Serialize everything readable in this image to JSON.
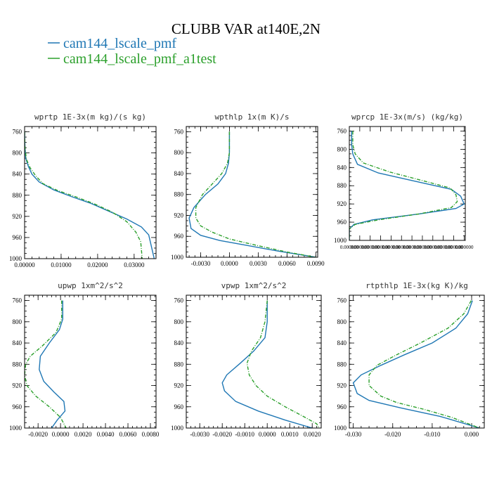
{
  "figure": {
    "title": "CLUBB VAR at140E,2N",
    "legend": [
      {
        "name": "cam144_lscale_pmf",
        "color": "#1f77b4"
      },
      {
        "name": "cam144_lscale_pmf_a1test",
        "color": "#2ca02c"
      }
    ]
  },
  "chart_data": [
    {
      "type": "line",
      "title": "wprtp  1E-3x(m kg)/(s kg)",
      "xlim": [
        0,
        0.036
      ],
      "ylim": [
        1000,
        750
      ],
      "xticks": [
        "0.00000",
        "0.01000",
        "0.02000",
        "0.03000"
      ],
      "xtick_values": [
        0,
        0.01,
        0.02,
        0.03
      ],
      "yticks": [
        "760",
        "800",
        "840",
        "880",
        "920",
        "960",
        "1000"
      ],
      "ytick_values": [
        760,
        800,
        840,
        880,
        920,
        960,
        1000
      ],
      "series": [
        {
          "name": "cam144_lscale_pmf",
          "color": "#1f77b4",
          "dashed": false,
          "x": [
            0,
            0.0001,
            0.0003,
            0.001,
            0.002,
            0.004,
            0.008,
            0.013,
            0.018,
            0.023,
            0.028,
            0.032,
            0.034,
            0.0355
          ],
          "y": [
            760,
            790,
            810,
            825,
            840,
            855,
            870,
            883,
            895,
            910,
            925,
            940,
            955,
            1000
          ]
        },
        {
          "name": "cam144_lscale_pmf_a1test",
          "color": "#2ca02c",
          "dashed": true,
          "x": [
            0,
            0.0001,
            0.0005,
            0.0015,
            0.003,
            0.005,
            0.009,
            0.014,
            0.019,
            0.024,
            0.028,
            0.0305,
            0.0318,
            0.0322
          ],
          "y": [
            760,
            790,
            812,
            828,
            843,
            858,
            871,
            883,
            896,
            912,
            930,
            950,
            968,
            1000
          ]
        }
      ]
    },
    {
      "type": "line",
      "title": "wpthlp  1x(m K)/s",
      "xlim": [
        -0.0045,
        0.0092
      ],
      "ylim": [
        1000,
        750
      ],
      "xticks": [
        "-0.0030",
        "0.0000",
        "0.0030",
        "0.0060",
        "0.0090"
      ],
      "xtick_values": [
        -0.003,
        0,
        0.003,
        0.006,
        0.009
      ],
      "yticks": [
        "760",
        "800",
        "840",
        "880",
        "920",
        "960",
        "1000"
      ],
      "ytick_values": [
        760,
        800,
        840,
        880,
        920,
        960,
        1000
      ],
      "series": [
        {
          "name": "cam144_lscale_pmf",
          "color": "#1f77b4",
          "dashed": false,
          "x": [
            0,
            0,
            -0.0001,
            -0.0004,
            -0.0012,
            -0.0025,
            -0.0037,
            -0.0042,
            -0.004,
            -0.003,
            -0.001,
            0.002,
            0.005,
            0.009
          ],
          "y": [
            760,
            800,
            820,
            840,
            860,
            880,
            905,
            925,
            945,
            958,
            968,
            978,
            988,
            1000
          ]
        },
        {
          "name": "cam144_lscale_pmf_a1test",
          "color": "#2ca02c",
          "dashed": true,
          "x": [
            0,
            0,
            -0.0002,
            -0.0008,
            -0.0018,
            -0.0028,
            -0.0035,
            -0.0035,
            -0.003,
            -0.0018,
            0.0,
            0.003,
            0.006,
            0.009
          ],
          "y": [
            760,
            800,
            820,
            840,
            860,
            880,
            905,
            925,
            940,
            952,
            965,
            978,
            990,
            1000
          ]
        }
      ]
    },
    {
      "type": "line",
      "title": "wprcp  1E-3x(m/s) (kg/kg)",
      "xlim": [
        0,
        1
      ],
      "ylim": [
        1000,
        750
      ],
      "xticks": [
        "0.000000",
        "0.000000",
        "0.000000",
        "0.000000",
        "0.000000",
        "0.000000",
        "0.000000",
        "0.000000",
        "0.000000",
        "0.000000",
        "0.000000",
        "0.000000"
      ],
      "xtick_values": [
        0,
        0.09,
        0.18,
        0.27,
        0.36,
        0.45,
        0.54,
        0.63,
        0.72,
        0.81,
        0.9,
        0.99
      ],
      "yticks": [
        "760",
        "800",
        "840",
        "880",
        "920",
        "960",
        "1000"
      ],
      "ytick_values": [
        760,
        800,
        840,
        880,
        920,
        960,
        1000
      ],
      "series": [
        {
          "name": "cam144_lscale_pmf",
          "color": "#1f77b4",
          "dashed": false,
          "x": [
            0.02,
            0.02,
            0.03,
            0.07,
            0.25,
            0.6,
            0.88,
            0.96,
            0.99,
            0.92,
            0.6,
            0.2,
            0.04,
            0.0,
            0.0
          ],
          "y": [
            760,
            790,
            810,
            833,
            852,
            872,
            888,
            903,
            920,
            930,
            942,
            955,
            965,
            975,
            1000
          ]
        },
        {
          "name": "cam144_lscale_pmf_a1test",
          "color": "#2ca02c",
          "dashed": true,
          "x": [
            0.03,
            0.03,
            0.05,
            0.12,
            0.35,
            0.65,
            0.87,
            0.92,
            0.93,
            0.88,
            0.6,
            0.25,
            0.05,
            0.0,
            0.0
          ],
          "y": [
            760,
            790,
            810,
            830,
            850,
            870,
            885,
            900,
            915,
            928,
            942,
            955,
            965,
            975,
            1000
          ]
        }
      ]
    },
    {
      "type": "line",
      "title": "upwp  1xm^2/s^2",
      "xlim": [
        -0.0032,
        0.0085
      ],
      "ylim": [
        1000,
        750
      ],
      "xticks": [
        "-0.0020",
        "0.0000",
        "0.0020",
        "0.0040",
        "0.0060",
        "0.0080"
      ],
      "xtick_values": [
        -0.002,
        0,
        0.002,
        0.004,
        0.006,
        0.008
      ],
      "yticks": [
        "760",
        "800",
        "840",
        "880",
        "920",
        "960",
        "1000"
      ],
      "ytick_values": [
        760,
        800,
        840,
        880,
        920,
        960,
        1000
      ],
      "series": [
        {
          "name": "cam144_lscale_pmf",
          "color": "#1f77b4",
          "dashed": false,
          "x": [
            0.0002,
            0.0002,
            -0.0001,
            -0.001,
            -0.0018,
            -0.0019,
            -0.0015,
            -0.0006,
            0.0003,
            0.0004,
            -0.0003,
            -0.0008
          ],
          "y": [
            760,
            795,
            815,
            840,
            865,
            890,
            912,
            932,
            950,
            968,
            985,
            1000
          ]
        },
        {
          "name": "cam144_lscale_pmf_a1test",
          "color": "#2ca02c",
          "dashed": true,
          "x": [
            0.0001,
            0.0001,
            -0.0004,
            -0.0016,
            -0.0027,
            -0.0031,
            -0.0032,
            -0.003,
            -0.0022,
            -0.001,
            0.0,
            0.0005
          ],
          "y": [
            760,
            795,
            820,
            845,
            865,
            880,
            900,
            920,
            940,
            960,
            980,
            1000
          ]
        }
      ]
    },
    {
      "type": "line",
      "title": "vpwp  1xm^2/s^2",
      "xlim": [
        -0.0036,
        0.0024
      ],
      "ylim": [
        1000,
        750
      ],
      "xticks": [
        "-0.0030",
        "-0.0020",
        "-0.0010",
        "0.0000",
        "0.0010",
        "0.0020"
      ],
      "xtick_values": [
        -0.003,
        -0.002,
        -0.001,
        0,
        0.001,
        0.002
      ],
      "yticks": [
        "760",
        "800",
        "840",
        "880",
        "920",
        "960",
        "1000"
      ],
      "ytick_values": [
        760,
        800,
        840,
        880,
        920,
        960,
        1000
      ],
      "series": [
        {
          "name": "cam144_lscale_pmf",
          "color": "#1f77b4",
          "dashed": false,
          "x": [
            0,
            0,
            -0.0001,
            -0.0006,
            -0.0012,
            -0.0018,
            -0.002,
            -0.0019,
            -0.0014,
            -0.0004,
            0.0008,
            0.002
          ],
          "y": [
            760,
            800,
            830,
            855,
            878,
            900,
            915,
            930,
            950,
            968,
            985,
            1000
          ]
        },
        {
          "name": "cam144_lscale_pmf_a1test",
          "color": "#2ca02c",
          "dashed": true,
          "x": [
            0,
            -0.0001,
            -0.0003,
            -0.0007,
            -0.0009,
            -0.0008,
            -0.0005,
            0.0,
            0.0008,
            0.0016,
            0.0022,
            0.0023
          ],
          "y": [
            760,
            800,
            830,
            855,
            878,
            900,
            920,
            940,
            960,
            978,
            992,
            1000
          ]
        }
      ]
    },
    {
      "type": "line",
      "title": "rtpthlp  1E-3x(kg K)/kg",
      "xlim": [
        -0.031,
        0.0032
      ],
      "ylim": [
        1000,
        750
      ],
      "xticks": [
        "-0.030",
        "-0.020",
        "-0.010",
        "0.000"
      ],
      "xtick_values": [
        -0.03,
        -0.02,
        -0.01,
        0
      ],
      "yticks": [
        "760",
        "800",
        "840",
        "880",
        "920",
        "960",
        "1000"
      ],
      "ytick_values": [
        760,
        800,
        840,
        880,
        920,
        960,
        1000
      ],
      "series": [
        {
          "name": "cam144_lscale_pmf",
          "color": "#1f77b4",
          "dashed": false,
          "x": [
            0.0002,
            -0.001,
            -0.004,
            -0.01,
            -0.017,
            -0.023,
            -0.028,
            -0.03,
            -0.029,
            -0.026,
            -0.018,
            -0.008,
            0.002
          ],
          "y": [
            760,
            785,
            812,
            840,
            862,
            882,
            900,
            915,
            935,
            948,
            962,
            978,
            1000
          ]
        },
        {
          "name": "cam144_lscale_pmf_a1test",
          "color": "#2ca02c",
          "dashed": true,
          "x": [
            -0.0001,
            -0.002,
            -0.006,
            -0.013,
            -0.019,
            -0.024,
            -0.026,
            -0.026,
            -0.023,
            -0.019,
            -0.012,
            -0.005,
            0.002
          ],
          "y": [
            760,
            785,
            812,
            840,
            862,
            882,
            900,
            920,
            940,
            952,
            965,
            980,
            1000
          ]
        }
      ]
    }
  ]
}
